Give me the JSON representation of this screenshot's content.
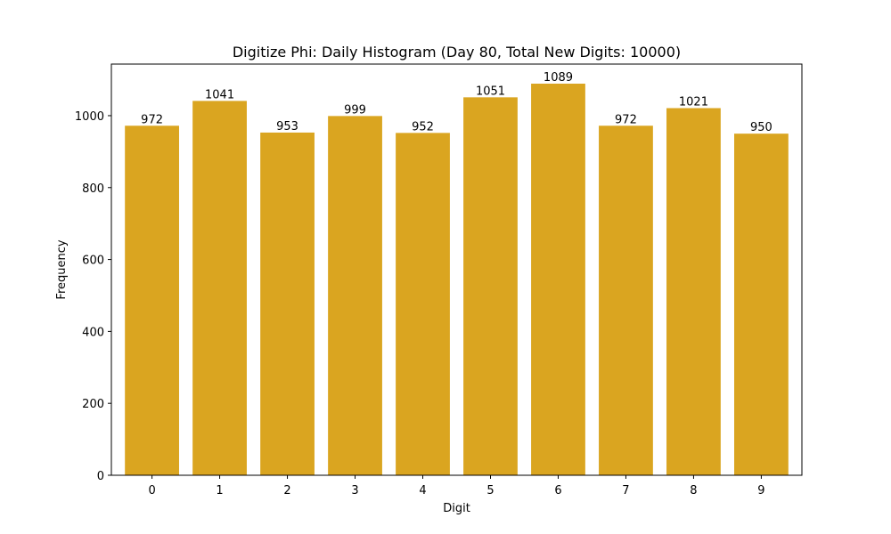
{
  "chart_data": {
    "type": "bar",
    "title": "Digitize Phi: Daily Histogram (Day 80, Total New Digits: 10000)",
    "xlabel": "Digit",
    "ylabel": "Frequency",
    "categories": [
      "0",
      "1",
      "2",
      "3",
      "4",
      "5",
      "6",
      "7",
      "8",
      "9"
    ],
    "values": [
      972,
      1041,
      953,
      999,
      952,
      1051,
      1089,
      972,
      1021,
      950
    ],
    "data_labels": [
      "972",
      "1041",
      "953",
      "999",
      "952",
      "1051",
      "1089",
      "972",
      "1021",
      "950"
    ],
    "ylim": [
      0,
      1143.45
    ],
    "yticks": [
      0,
      200,
      400,
      600,
      800,
      1000
    ],
    "bar_color": "#DAA520",
    "grid": false,
    "legend": "none"
  }
}
